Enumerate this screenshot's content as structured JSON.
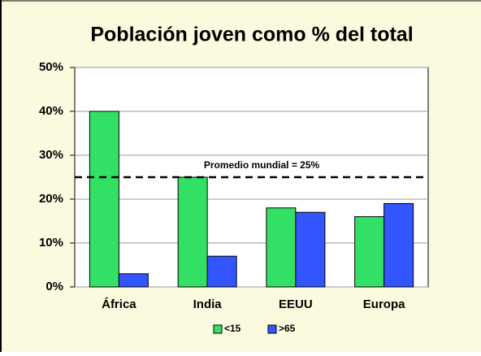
{
  "chart_data": {
    "type": "bar",
    "title": "Población joven como % del total",
    "categories": [
      "África",
      "India",
      "EEUU",
      "Europa"
    ],
    "series": [
      {
        "name": "<15",
        "color": "#33e066",
        "values": [
          40,
          25,
          18,
          16
        ]
      },
      {
        "name": ">65",
        "color": "#3355ff",
        "values": [
          3,
          7,
          17,
          19
        ]
      }
    ],
    "ylim": [
      0,
      50
    ],
    "yticks": [
      {
        "value": 0,
        "label": "0%"
      },
      {
        "value": 10,
        "label": "10%"
      },
      {
        "value": 20,
        "label": "20%"
      },
      {
        "value": 30,
        "label": "30%"
      },
      {
        "value": 40,
        "label": "40%"
      },
      {
        "value": 50,
        "label": "50%"
      }
    ],
    "grid": true,
    "reference_line": {
      "value": 25,
      "label": "Promedio mundial = 25%"
    },
    "legend": "bottom"
  }
}
